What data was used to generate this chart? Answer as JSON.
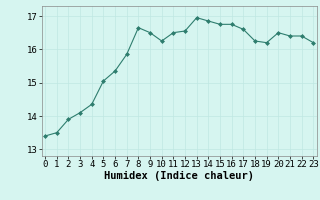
{
  "x": [
    0,
    1,
    2,
    3,
    4,
    5,
    6,
    7,
    8,
    9,
    10,
    11,
    12,
    13,
    14,
    15,
    16,
    17,
    18,
    19,
    20,
    21,
    22,
    23
  ],
  "y": [
    13.4,
    13.5,
    13.9,
    14.1,
    14.35,
    15.05,
    15.35,
    15.85,
    16.65,
    16.5,
    16.25,
    16.5,
    16.55,
    16.95,
    16.85,
    16.75,
    16.75,
    16.6,
    16.25,
    16.2,
    16.5,
    16.4,
    16.4,
    16.2
  ],
  "xlabel": "Humidex (Indice chaleur)",
  "yticks": [
    13,
    14,
    15,
    16,
    17
  ],
  "xticks": [
    0,
    1,
    2,
    3,
    4,
    5,
    6,
    7,
    8,
    9,
    10,
    11,
    12,
    13,
    14,
    15,
    16,
    17,
    18,
    19,
    20,
    21,
    22,
    23
  ],
  "xtick_labels": [
    "0",
    "1",
    "2",
    "3",
    "4",
    "5",
    "6",
    "7",
    "8",
    "9",
    "10",
    "11",
    "12",
    "13",
    "14",
    "15",
    "16",
    "17",
    "18",
    "19",
    "20",
    "21",
    "22",
    "23"
  ],
  "ylim": [
    12.8,
    17.3
  ],
  "xlim": [
    -0.3,
    23.3
  ],
  "line_color": "#2e7d6e",
  "marker_color": "#2e7d6e",
  "bg_color": "#d6f5f0",
  "grid_color": "#c0e8e2",
  "tick_fontsize": 6.5,
  "xlabel_fontsize": 7.5
}
